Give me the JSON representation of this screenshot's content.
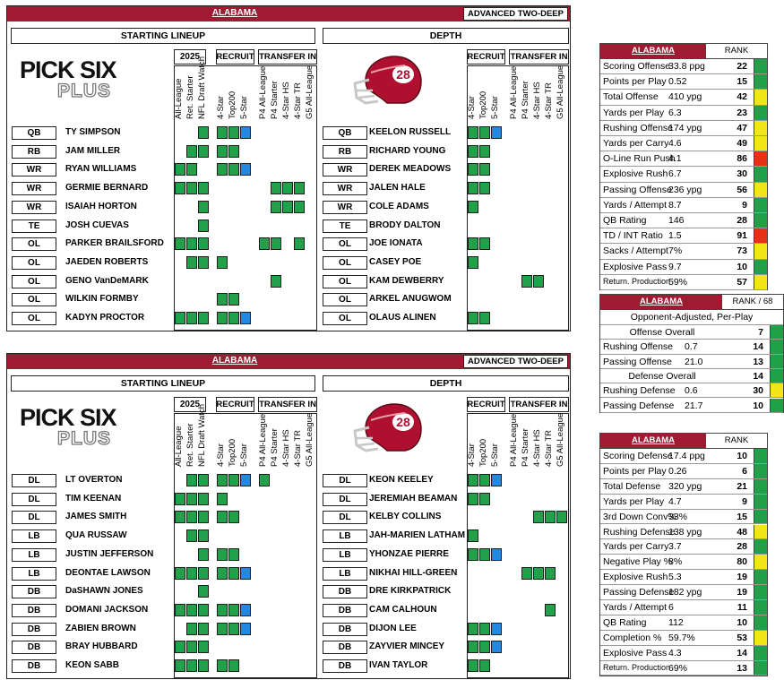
{
  "offense": {
    "team": "ALABAMA",
    "badge": "ADVANCED TWO-DEEP",
    "left_header": "STARTING LINEUP",
    "right_header": "DEPTH",
    "year": "2025",
    "recruit": "RECRUIT",
    "transfer": "TRANSFER IN",
    "logo_top": "PICK SIX",
    "logo_bottom": "PLUS",
    "helmet_number": "28",
    "left_cols": [
      "All-League",
      "Ret. Starter",
      "NFL Draft Watch",
      "4-Star",
      "Top200",
      "5-Star",
      "P4 All-League",
      "P4 Starter",
      "4-Star HS",
      "4-Star TR",
      "G5 All-League"
    ],
    "right_cols": [
      "4-Star",
      "Top200",
      "5-Star",
      "P4 All-League",
      "P4 Starter",
      "4-Star HS",
      "4-Star TR",
      "G5 All-League"
    ],
    "starters": [
      {
        "pos": "QB",
        "name": "TY SIMPSON"
      },
      {
        "pos": "RB",
        "name": "JAM MILLER"
      },
      {
        "pos": "WR",
        "name": "RYAN WILLIAMS"
      },
      {
        "pos": "WR",
        "name": "GERMIE BERNARD"
      },
      {
        "pos": "WR",
        "name": "ISAIAH HORTON"
      },
      {
        "pos": "TE",
        "name": "JOSH CUEVAS"
      },
      {
        "pos": "OL",
        "name": "PARKER BRAILSFORD"
      },
      {
        "pos": "OL",
        "name": "JAEDEN ROBERTS"
      },
      {
        "pos": "OL",
        "name": "GENO VanDeMARK"
      },
      {
        "pos": "OL",
        "name": "WILKIN FORMBY"
      },
      {
        "pos": "OL",
        "name": "KADYN PROCTOR"
      }
    ],
    "depth": [
      {
        "pos": "QB",
        "name": "KEELON RUSSELL"
      },
      {
        "pos": "RB",
        "name": "RICHARD YOUNG"
      },
      {
        "pos": "WR",
        "name": "DEREK MEADOWS"
      },
      {
        "pos": "WR",
        "name": "JALEN HALE"
      },
      {
        "pos": "WR",
        "name": "COLE ADAMS"
      },
      {
        "pos": "TE",
        "name": "BRODY DALTON"
      },
      {
        "pos": "OL",
        "name": "JOE IONATA"
      },
      {
        "pos": "OL",
        "name": "CASEY POE"
      },
      {
        "pos": "OL",
        "name": "KAM DEWBERRY"
      },
      {
        "pos": "OL",
        "name": "ARKEL ANUGWOM"
      },
      {
        "pos": "OL",
        "name": "OLAUS ALINEN"
      }
    ],
    "starter_marks": [
      [
        0,
        0,
        1,
        1,
        1,
        2,
        0,
        0,
        0,
        0,
        0
      ],
      [
        0,
        1,
        1,
        1,
        1,
        0,
        0,
        0,
        0,
        0,
        0
      ],
      [
        1,
        1,
        0,
        1,
        1,
        2,
        0,
        0,
        0,
        0,
        0
      ],
      [
        1,
        1,
        1,
        0,
        0,
        0,
        0,
        1,
        1,
        1,
        0
      ],
      [
        0,
        0,
        1,
        0,
        0,
        0,
        0,
        1,
        1,
        1,
        0
      ],
      [
        0,
        0,
        1,
        0,
        0,
        0,
        0,
        0,
        0,
        0,
        0
      ],
      [
        1,
        1,
        1,
        0,
        0,
        0,
        1,
        1,
        0,
        1,
        0
      ],
      [
        0,
        1,
        1,
        1,
        0,
        0,
        0,
        0,
        0,
        0,
        0
      ],
      [
        0,
        0,
        0,
        0,
        0,
        0,
        0,
        1,
        0,
        0,
        0
      ],
      [
        0,
        0,
        0,
        1,
        1,
        0,
        0,
        0,
        0,
        0,
        0
      ],
      [
        1,
        1,
        1,
        1,
        1,
        2,
        0,
        0,
        0,
        0,
        0
      ]
    ],
    "depth_marks": [
      [
        1,
        1,
        2,
        0,
        0,
        0,
        0,
        0
      ],
      [
        1,
        1,
        0,
        0,
        0,
        0,
        0,
        0
      ],
      [
        1,
        1,
        0,
        0,
        0,
        0,
        0,
        0
      ],
      [
        1,
        1,
        0,
        0,
        0,
        0,
        0,
        0
      ],
      [
        1,
        0,
        0,
        0,
        0,
        0,
        0,
        0
      ],
      [
        0,
        0,
        0,
        0,
        0,
        0,
        0,
        0
      ],
      [
        1,
        1,
        0,
        0,
        0,
        0,
        0,
        0
      ],
      [
        1,
        0,
        0,
        0,
        0,
        0,
        0,
        0
      ],
      [
        0,
        0,
        0,
        0,
        1,
        1,
        0,
        0
      ],
      [
        0,
        0,
        0,
        0,
        0,
        0,
        0,
        0
      ],
      [
        1,
        1,
        0,
        0,
        0,
        0,
        0,
        0
      ]
    ]
  },
  "defense": {
    "team": "ALABAMA",
    "badge": "ADVANCED TWO-DEEP",
    "left_header": "STARTING LINEUP",
    "right_header": "DEPTH",
    "year": "2025",
    "recruit": "RECRUIT",
    "transfer": "TRANSFER IN",
    "logo_top": "PICK SIX",
    "logo_bottom": "PLUS",
    "helmet_number": "28",
    "left_cols": [
      "All-League",
      "Ret. Starter",
      "NFL Draft Watch",
      "4-Star",
      "Top200",
      "5-Star",
      "P4 All-League",
      "P4 Starter",
      "4-Star HS",
      "4-Star TR",
      "G5 All-League"
    ],
    "right_cols": [
      "4-Star",
      "Top200",
      "5-Star",
      "P4 All-League",
      "P4 Starter",
      "4-Star HS",
      "4-Star TR",
      "G5 All-League"
    ],
    "starters": [
      {
        "pos": "DL",
        "name": "LT OVERTON"
      },
      {
        "pos": "DL",
        "name": "TIM KEENAN"
      },
      {
        "pos": "DL",
        "name": "JAMES SMITH"
      },
      {
        "pos": "LB",
        "name": "QUA RUSSAW"
      },
      {
        "pos": "LB",
        "name": "JUSTIN JEFFERSON"
      },
      {
        "pos": "LB",
        "name": "DEONTAE LAWSON"
      },
      {
        "pos": "DB",
        "name": "DaSHAWN JONES"
      },
      {
        "pos": "DB",
        "name": "DOMANI JACKSON"
      },
      {
        "pos": "DB",
        "name": "ZABIEN BROWN"
      },
      {
        "pos": "DB",
        "name": "BRAY HUBBARD"
      },
      {
        "pos": "DB",
        "name": "KEON SABB"
      }
    ],
    "depth": [
      {
        "pos": "DL",
        "name": "KEON KEELEY"
      },
      {
        "pos": "DL",
        "name": "JEREMIAH BEAMAN"
      },
      {
        "pos": "DL",
        "name": "KELBY COLLINS"
      },
      {
        "pos": "LB",
        "name": "JAH-MARIEN LATHAM"
      },
      {
        "pos": "LB",
        "name": "YHONZAE PIERRE"
      },
      {
        "pos": "LB",
        "name": "NIKHAI HILL-GREEN"
      },
      {
        "pos": "DB",
        "name": "DRE KIRKPATRICK"
      },
      {
        "pos": "DB",
        "name": "CAM CALHOUN"
      },
      {
        "pos": "DB",
        "name": "DIJON LEE"
      },
      {
        "pos": "DB",
        "name": "ZAYVIER MINCEY"
      },
      {
        "pos": "DB",
        "name": "IVAN TAYLOR"
      }
    ],
    "starter_marks": [
      [
        0,
        1,
        1,
        1,
        1,
        2,
        1,
        0,
        0,
        0,
        0
      ],
      [
        1,
        1,
        1,
        1,
        0,
        0,
        0,
        0,
        0,
        0,
        0
      ],
      [
        1,
        1,
        1,
        1,
        1,
        0,
        0,
        0,
        0,
        0,
        0
      ],
      [
        0,
        1,
        1,
        0,
        0,
        0,
        0,
        0,
        0,
        0,
        0
      ],
      [
        0,
        0,
        1,
        1,
        1,
        0,
        0,
        0,
        0,
        0,
        0
      ],
      [
        1,
        1,
        1,
        1,
        1,
        2,
        0,
        0,
        0,
        0,
        0
      ],
      [
        0,
        0,
        1,
        0,
        0,
        0,
        0,
        0,
        0,
        0,
        0
      ],
      [
        1,
        1,
        1,
        1,
        1,
        2,
        0,
        0,
        0,
        0,
        0
      ],
      [
        0,
        1,
        1,
        1,
        1,
        2,
        0,
        0,
        0,
        0,
        0
      ],
      [
        1,
        1,
        1,
        0,
        0,
        0,
        0,
        0,
        0,
        0,
        0
      ],
      [
        1,
        1,
        1,
        1,
        1,
        0,
        0,
        0,
        0,
        0,
        0
      ]
    ],
    "depth_marks": [
      [
        1,
        1,
        2,
        0,
        0,
        0,
        0,
        0
      ],
      [
        1,
        1,
        0,
        0,
        0,
        0,
        0,
        0
      ],
      [
        0,
        0,
        0,
        0,
        0,
        1,
        1,
        1
      ],
      [
        1,
        0,
        0,
        0,
        0,
        0,
        0,
        0
      ],
      [
        1,
        1,
        2,
        0,
        0,
        0,
        0,
        0
      ],
      [
        0,
        0,
        0,
        0,
        1,
        1,
        1,
        0
      ],
      [
        0,
        0,
        0,
        0,
        0,
        0,
        0,
        0
      ],
      [
        0,
        0,
        0,
        0,
        0,
        0,
        1,
        0
      ],
      [
        1,
        1,
        2,
        0,
        0,
        0,
        0,
        0
      ],
      [
        1,
        1,
        2,
        0,
        0,
        0,
        0,
        0
      ],
      [
        1,
        1,
        0,
        0,
        0,
        0,
        0,
        0
      ]
    ]
  },
  "off_stats": {
    "team": "ALABAMA",
    "rank_label": "RANK",
    "rows": [
      {
        "label": "Scoring Offense",
        "value": "33.8 ppg",
        "rank": "22",
        "color": "green"
      },
      {
        "label": "Points per Play",
        "value": "0.52",
        "rank": "15",
        "color": "green"
      },
      {
        "label": "Total Offense",
        "value": "410 ypg",
        "rank": "42",
        "color": "yellow"
      },
      {
        "label": "Yards per Play",
        "value": "6.3",
        "rank": "23",
        "color": "green"
      },
      {
        "label": "Rushing Offense",
        "value": "174 ypg",
        "rank": "47",
        "color": "yellow"
      },
      {
        "label": "Yards per Carry",
        "value": "4.6",
        "rank": "49",
        "color": "yellow"
      },
      {
        "label": "O-Line Run Push",
        "value": "4.1",
        "rank": "86",
        "color": "red"
      },
      {
        "label": "Explosive Rush",
        "value": "6.7",
        "rank": "30",
        "color": "green"
      },
      {
        "label": "Passing Offense",
        "value": "236 ypg",
        "rank": "56",
        "color": "yellow"
      },
      {
        "label": "Yards / Attempt",
        "value": "8.7",
        "rank": "9",
        "color": "green"
      },
      {
        "label": "QB Rating",
        "value": "146",
        "rank": "28",
        "color": "green"
      },
      {
        "label": "TD / INT Ratio",
        "value": "1.5",
        "rank": "91",
        "color": "red"
      },
      {
        "label": "Sacks / Attempt",
        "value": "7%",
        "rank": "73",
        "color": "yellow"
      },
      {
        "label": "Explosive Pass",
        "value": "9.7",
        "rank": "10",
        "color": "green"
      },
      {
        "label": "Return. Production",
        "value": "59%",
        "rank": "57",
        "color": "yellow"
      }
    ]
  },
  "adj_stats": {
    "team": "ALABAMA",
    "rank_label": "RANK / 68",
    "subtitle": "Opponent-Adjusted, Per-Play",
    "rows": [
      {
        "label": "Offense Overall",
        "value": "",
        "rank": "7",
        "color": "green",
        "center": true
      },
      {
        "label": "Rushing Offense",
        "value": "0.7",
        "rank": "14",
        "color": "green"
      },
      {
        "label": "Passing Offense",
        "value": "21.0",
        "rank": "13",
        "color": "green"
      },
      {
        "label": "Defense Overall",
        "value": "",
        "rank": "14",
        "color": "green",
        "center": true
      },
      {
        "label": "Rushing Defense",
        "value": "0.6",
        "rank": "30",
        "color": "yellow"
      },
      {
        "label": "Passing Defense",
        "value": "21.7",
        "rank": "10",
        "color": "green"
      }
    ]
  },
  "def_stats": {
    "team": "ALABAMA",
    "rank_label": "RANK",
    "rows": [
      {
        "label": "Scoring Defense",
        "value": "17.4 ppg",
        "rank": "10",
        "color": "green"
      },
      {
        "label": "Points per Play",
        "value": "0.26",
        "rank": "6",
        "color": "green"
      },
      {
        "label": "Total Defense",
        "value": "320 ypg",
        "rank": "21",
        "color": "green"
      },
      {
        "label": "Yards per Play",
        "value": "4.7",
        "rank": "9",
        "color": "green"
      },
      {
        "label": "3rd Down Conv%",
        "value": "33%",
        "rank": "15",
        "color": "green"
      },
      {
        "label": "Rushing Defense",
        "value": "138 ypg",
        "rank": "48",
        "color": "yellow"
      },
      {
        "label": "Yards per Carry",
        "value": "3.7",
        "rank": "28",
        "color": "green"
      },
      {
        "label": "Negative Play %",
        "value": "8%",
        "rank": "80",
        "color": "yellow"
      },
      {
        "label": "Explosive Rush",
        "value": "5.3",
        "rank": "19",
        "color": "green"
      },
      {
        "label": "Passing Defense",
        "value": "182 ypg",
        "rank": "19",
        "color": "green"
      },
      {
        "label": "Yards / Attempt",
        "value": "6",
        "rank": "11",
        "color": "green"
      },
      {
        "label": "QB Rating",
        "value": "112",
        "rank": "10",
        "color": "green"
      },
      {
        "label": "Completion %",
        "value": "59.7%",
        "rank": "53",
        "color": "yellow"
      },
      {
        "label": "Explosive Pass",
        "value": "4.3",
        "rank": "14",
        "color": "green"
      },
      {
        "label": "Return. Production",
        "value": "69%",
        "rank": "13",
        "color": "green"
      }
    ]
  },
  "colors": {
    "crimson": "#9e1b32",
    "green": "#22a04b",
    "blue": "#2288e0",
    "yellow": "#f0e619",
    "red": "#e53212"
  }
}
